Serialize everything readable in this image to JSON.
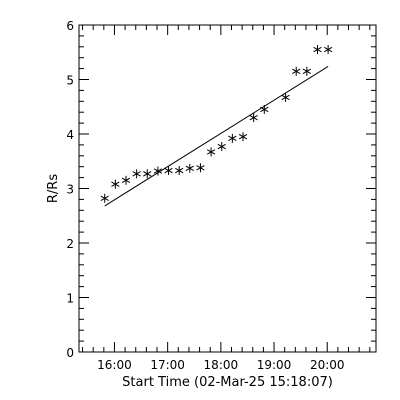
{
  "chart_data": {
    "type": "scatter",
    "xlabel": "Start Time (02-Mar-25 15:18:07)",
    "ylabel": "R/Rs",
    "x_ticks": [
      "16:00",
      "17:00",
      "18:00",
      "19:00",
      "20:00"
    ],
    "y_ticks": [
      0,
      1,
      2,
      3,
      4,
      5,
      6
    ],
    "xlim": [
      "15:20",
      "20:55"
    ],
    "ylim": [
      0,
      6
    ],
    "series": [
      {
        "marker": "asterisk",
        "points": [
          {
            "x": "15:49",
            "y": 2.82
          },
          {
            "x": "16:01",
            "y": 3.08
          },
          {
            "x": "16:13",
            "y": 3.15
          },
          {
            "x": "16:25",
            "y": 3.27
          },
          {
            "x": "16:37",
            "y": 3.27
          },
          {
            "x": "16:49",
            "y": 3.32
          },
          {
            "x": "17:01",
            "y": 3.33
          },
          {
            "x": "17:13",
            "y": 3.33
          },
          {
            "x": "17:25",
            "y": 3.37
          },
          {
            "x": "17:37",
            "y": 3.38
          },
          {
            "x": "17:49",
            "y": 3.67
          },
          {
            "x": "18:01",
            "y": 3.77
          },
          {
            "x": "18:13",
            "y": 3.92
          },
          {
            "x": "18:25",
            "y": 3.95
          },
          {
            "x": "18:37",
            "y": 4.3
          },
          {
            "x": "18:49",
            "y": 4.45
          },
          {
            "x": "19:13",
            "y": 4.67
          },
          {
            "x": "19:25",
            "y": 5.15
          },
          {
            "x": "19:37",
            "y": 5.15
          },
          {
            "x": "19:49",
            "y": 5.55
          },
          {
            "x": "20:01",
            "y": 5.55
          }
        ]
      }
    ],
    "fit_line": {
      "x": [
        "15:49",
        "20:01"
      ],
      "y": [
        2.68,
        5.24
      ]
    },
    "grid": false,
    "colors": {
      "axes": "#000000",
      "marker": "#000000",
      "fit": "#000000",
      "background": "#ffffff"
    }
  }
}
